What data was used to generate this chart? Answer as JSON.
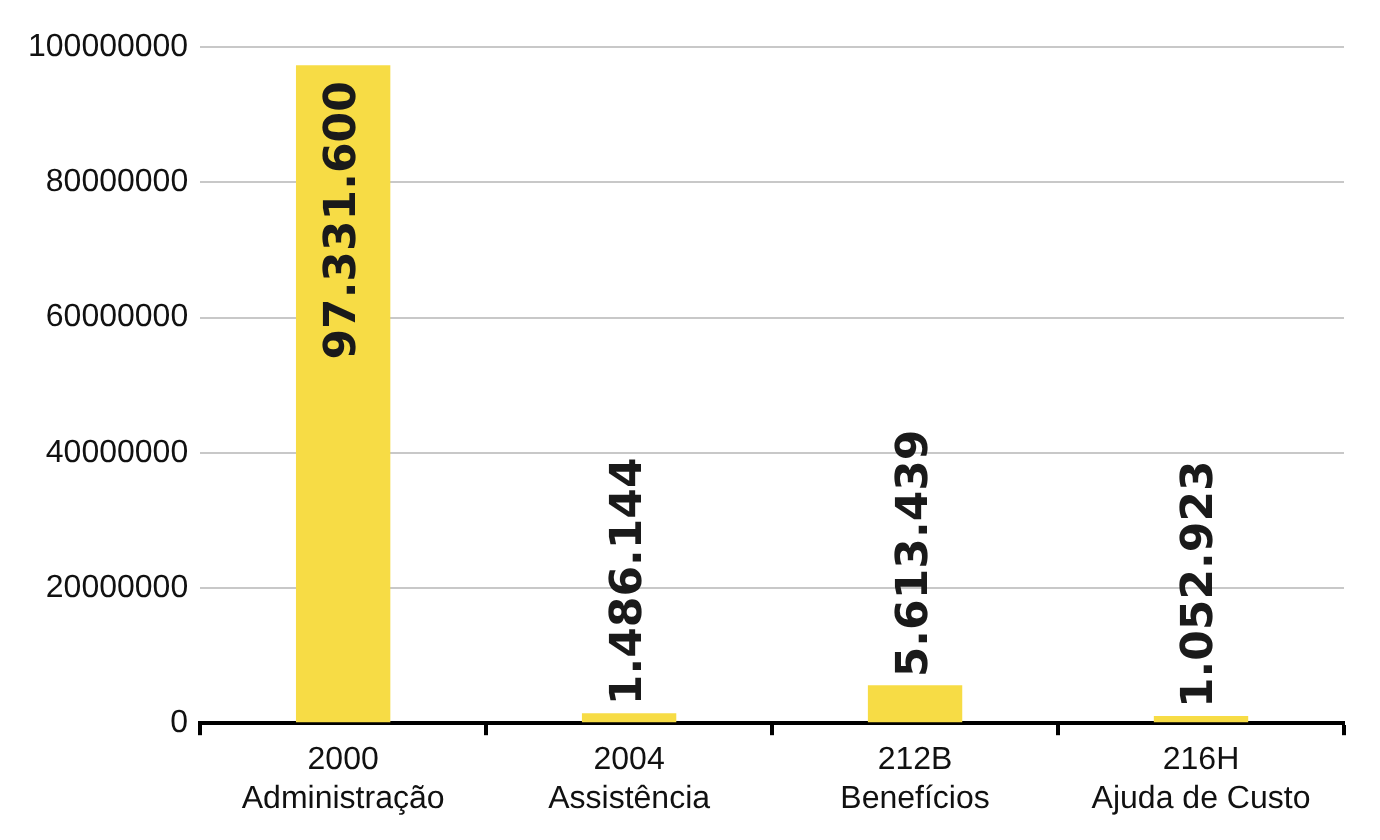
{
  "chart_data": {
    "type": "bar",
    "categories": [
      "2000\nAdministração",
      "2004\nAssistência",
      "212B\nBenefícios",
      "216H\nAjuda de Custo"
    ],
    "values": [
      97331600,
      1486144,
      5613439,
      1052923
    ],
    "value_labels": [
      "97.331.600",
      "1.486.144",
      "5.613.439",
      "1.052.923"
    ],
    "color": "#f7dc45",
    "ylim": [
      0,
      100000000
    ],
    "yticks": [
      0,
      20000000,
      40000000,
      60000000,
      80000000,
      100000000
    ],
    "grid": "y"
  }
}
